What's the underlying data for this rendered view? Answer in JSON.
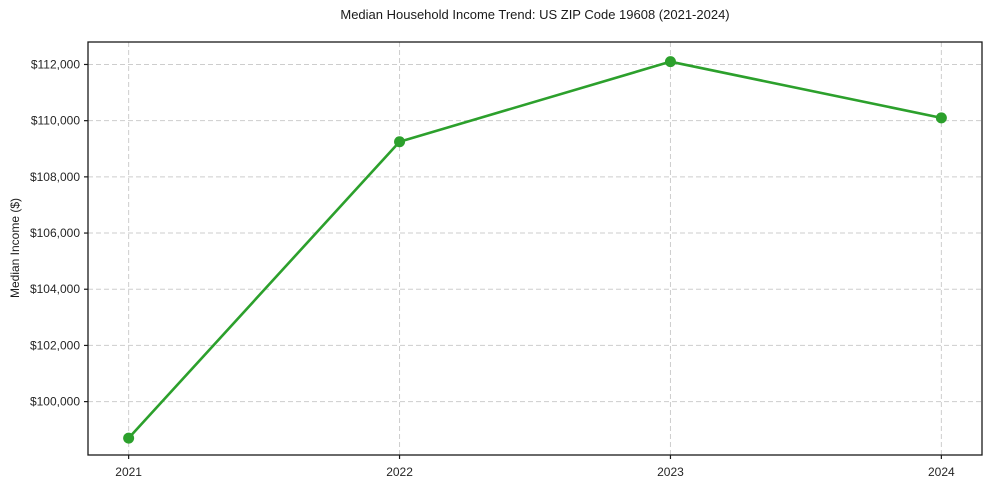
{
  "chart_data": {
    "type": "line",
    "title": "Median Household Income Trend: US ZIP Code 19608 (2021-2024)",
    "xlabel": "",
    "ylabel": "Median Income ($)",
    "x": [
      2021,
      2022,
      2023,
      2024
    ],
    "values": [
      98700,
      109250,
      112100,
      110100
    ],
    "x_tick_labels": [
      "2021",
      "2022",
      "2023",
      "2024"
    ],
    "y_ticks": [
      100000,
      102000,
      104000,
      106000,
      108000,
      110000,
      112000
    ],
    "y_tick_labels": [
      "$100,000",
      "$102,000",
      "$104,000",
      "$106,000",
      "$108,000",
      "$110,000",
      "$112,000"
    ],
    "xlim": [
      2020.85,
      2024.15
    ],
    "ylim": [
      98100,
      112800
    ],
    "grid": true,
    "grid_style": "dashed",
    "grid_color": "#cdcdcd",
    "line_color": "#2ca02c",
    "marker": "circle",
    "marker_color": "#2ca02c",
    "spine_color": "#1a1a1a",
    "tick_label_color": "#262626",
    "plot_background": "#ffffff",
    "legend": null
  }
}
